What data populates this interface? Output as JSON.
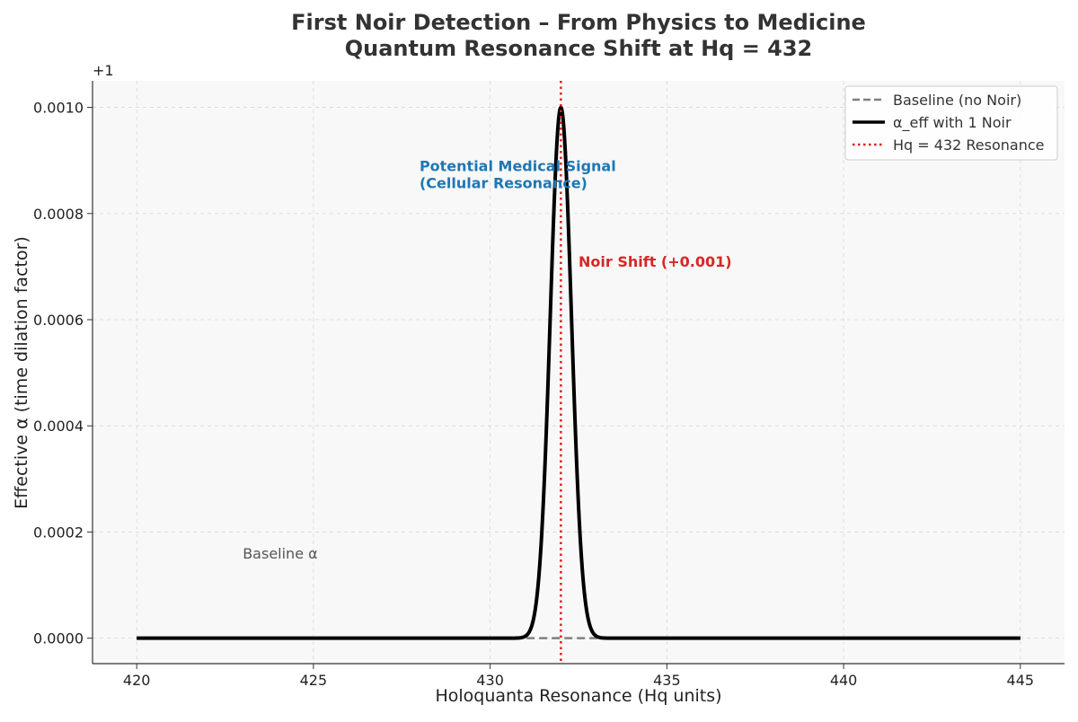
{
  "chart_data": {
    "type": "line",
    "title_line1": "First Noir Detection – From Physics to Medicine",
    "title_line2": "Quantum Resonance Shift at Hq = 432",
    "xlabel": "Holoquanta Resonance (Hq units)",
    "ylabel": "Effective α (time dilation factor)",
    "y_offset_label": "+1",
    "xlim": [
      418.75,
      446.25
    ],
    "ylim": [
      -4.8e-05,
      0.00105
    ],
    "x_ticks": [
      420,
      425,
      430,
      435,
      440,
      445
    ],
    "x_tick_labels": [
      "420",
      "425",
      "430",
      "435",
      "440",
      "445"
    ],
    "y_ticks": [
      0,
      0.0002,
      0.0004,
      0.0006,
      0.0008,
      0.001
    ],
    "y_tick_labels": [
      "0.0000",
      "0.0002",
      "0.0004",
      "0.0006",
      "0.0008",
      "0.0010"
    ],
    "grid": true,
    "legend_position": "top-right",
    "series": [
      {
        "name": "Baseline (no Noir)",
        "style": "dashed",
        "color": "#808080",
        "x_range": [
          420,
          445
        ],
        "constant": 0
      },
      {
        "name": "α_eff with 1 Noir",
        "style": "solid",
        "color": "#000000",
        "x_range": [
          420,
          445
        ],
        "peak_center": 432,
        "peak_amplitude": 0.001,
        "peak_sigma": 0.3
      }
    ],
    "vline": {
      "name": "Hq = 432 Resonance",
      "x": 432,
      "style": "dotted",
      "color": "#dd2222"
    },
    "annotations": [
      {
        "id": "medical",
        "line1": "Potential Medical Signal",
        "line2": "(Cellular Resonance)",
        "x": 428,
        "y": 0.00088,
        "color": "#1f77b4",
        "bold": true
      },
      {
        "id": "noir-shift",
        "line1": "Noir Shift (+0.001)",
        "x": 432.5,
        "y": 0.0007,
        "color": "#d62728",
        "bold": true
      },
      {
        "id": "baseline",
        "line1": "Baseline α",
        "x": 423,
        "y": 0.00015,
        "color": "#555555",
        "bold": false
      }
    ]
  }
}
